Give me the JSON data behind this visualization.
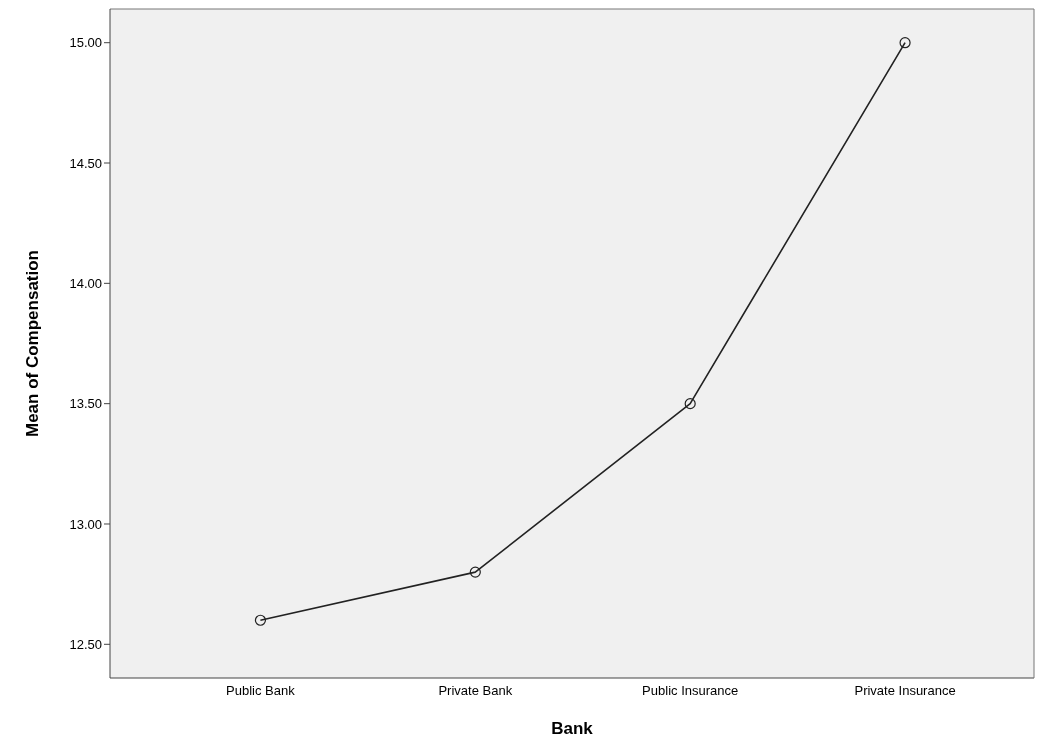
{
  "chart_data": {
    "type": "line",
    "xlabel": "Bank",
    "ylabel": "Mean of Compensation",
    "categories": [
      "Public Bank",
      "Private Bank",
      "Public Insurance",
      "Private Insurance"
    ],
    "series": [
      {
        "color": "#222222",
        "values": [
          12.6,
          12.8,
          13.5,
          15.0
        ]
      }
    ],
    "ylim": [
      12.36,
      15.14
    ],
    "yticks": [
      {
        "value": 12.5,
        "label": "12.50"
      },
      {
        "value": 13,
        "label": "13.00"
      },
      {
        "value": 13.5,
        "label": "13.50"
      },
      {
        "value": 14,
        "label": "14.00"
      },
      {
        "value": 14.5,
        "label": "14.50"
      },
      {
        "value": 15,
        "label": "15.00"
      }
    ],
    "grid": false,
    "legend": false,
    "marker": "circle",
    "line_style": "solid"
  }
}
